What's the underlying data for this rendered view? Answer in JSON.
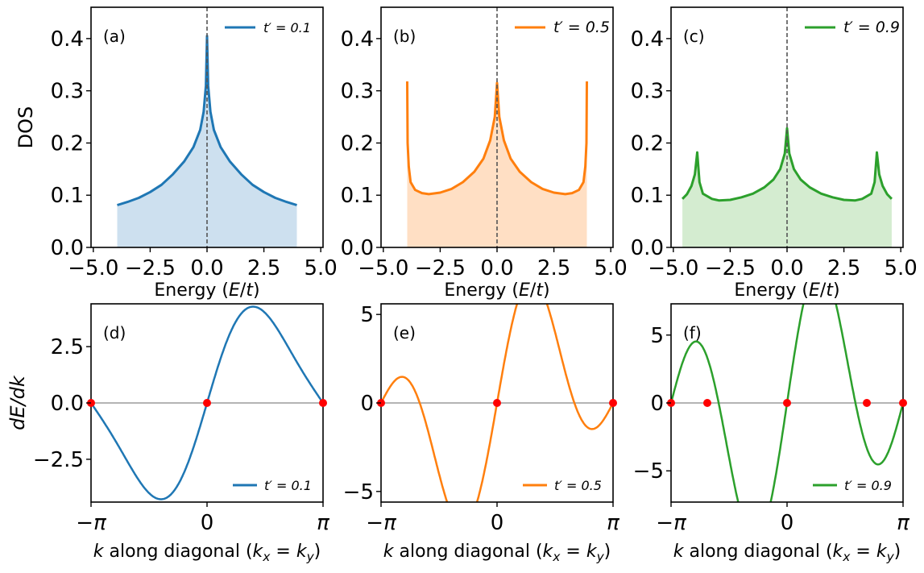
{
  "chart_data": [
    {
      "panel": "(a)",
      "type": "area",
      "series_name": "t′ = 0.1",
      "color": "#1f77b4",
      "fill": "#cde0ef",
      "xlabel": "Energy (E/t)",
      "ylabel": "DOS",
      "xlim": [
        -5.1,
        5.1
      ],
      "ylim": [
        0,
        0.46
      ],
      "xticks": [
        -5,
        -2.5,
        0,
        2.5,
        5
      ],
      "xtick_labels": [
        "−5.0",
        "−2.5",
        "0.0",
        "2.5",
        "5.0"
      ],
      "yticks": [
        0,
        0.1,
        0.2,
        0.3,
        0.4
      ],
      "ytick_labels": [
        "0.0",
        "0.1",
        "0.2",
        "0.3",
        "0.4"
      ],
      "vline_x": 0,
      "legend_loc": "top-right",
      "x": [
        -3.95,
        -3.5,
        -3.0,
        -2.5,
        -2.0,
        -1.5,
        -1.0,
        -0.6,
        -0.3,
        -0.15,
        -0.05,
        0,
        0.05,
        0.15,
        0.3,
        0.6,
        1.0,
        1.5,
        2.0,
        2.5,
        3.0,
        3.5,
        3.95
      ],
      "y": [
        0.081,
        0.087,
        0.095,
        0.106,
        0.12,
        0.14,
        0.165,
        0.192,
        0.225,
        0.26,
        0.31,
        0.405,
        0.31,
        0.26,
        0.225,
        0.192,
        0.165,
        0.14,
        0.12,
        0.106,
        0.095,
        0.087,
        0.081
      ]
    },
    {
      "panel": "(b)",
      "type": "area",
      "series_name": "t′ = 0.5",
      "color": "#ff7f0e",
      "fill": "#ffdfc4",
      "xlabel": "Energy (E/t)",
      "ylabel": "",
      "xlim": [
        -5.1,
        5.1
      ],
      "ylim": [
        0,
        0.46
      ],
      "xticks": [
        -5,
        -2.5,
        0,
        2.5,
        5
      ],
      "xtick_labels": [
        "−5.0",
        "−2.5",
        "0.0",
        "2.5",
        "5.0"
      ],
      "yticks": [
        0,
        0.1,
        0.2,
        0.3,
        0.4
      ],
      "ytick_labels": [
        "0.0",
        "0.1",
        "0.2",
        "0.3",
        "0.4"
      ],
      "vline_x": 0,
      "legend_loc": "top-right",
      "x": [
        -3.95,
        -3.93,
        -3.88,
        -3.8,
        -3.6,
        -3.3,
        -3.0,
        -2.5,
        -2.0,
        -1.5,
        -1.0,
        -0.6,
        -0.3,
        -0.1,
        0,
        0.1,
        0.3,
        0.6,
        1.0,
        1.5,
        2.0,
        2.5,
        3.0,
        3.3,
        3.6,
        3.8,
        3.88,
        3.93,
        3.95
      ],
      "y": [
        0.318,
        0.2,
        0.155,
        0.125,
        0.11,
        0.104,
        0.102,
        0.105,
        0.112,
        0.125,
        0.145,
        0.17,
        0.205,
        0.25,
        0.315,
        0.25,
        0.205,
        0.17,
        0.145,
        0.125,
        0.112,
        0.105,
        0.102,
        0.104,
        0.11,
        0.125,
        0.155,
        0.2,
        0.318
      ]
    },
    {
      "panel": "(c)",
      "type": "area",
      "series_name": "t′ = 0.9",
      "color": "#2ca02c",
      "fill": "#d4ecd0",
      "xlabel": "Energy (E/t)",
      "ylabel": "",
      "xlim": [
        -5.1,
        5.1
      ],
      "ylim": [
        0,
        0.46
      ],
      "xticks": [
        -5,
        -2.5,
        0,
        2.5,
        5
      ],
      "xtick_labels": [
        "−5.0",
        "−2.5",
        "0.0",
        "2.5",
        "5.0"
      ],
      "yticks": [
        0,
        0.1,
        0.2,
        0.3,
        0.4
      ],
      "ytick_labels": [
        "0.0",
        "0.1",
        "0.2",
        "0.3",
        "0.4"
      ],
      "vline_x": 0,
      "legend_loc": "top-right",
      "x": [
        -4.6,
        -4.4,
        -4.2,
        -4.05,
        -3.95,
        -3.85,
        -3.7,
        -3.3,
        -3.0,
        -2.5,
        -2.0,
        -1.5,
        -1.0,
        -0.6,
        -0.3,
        -0.1,
        0,
        0.1,
        0.3,
        0.6,
        1.0,
        1.5,
        2.0,
        2.5,
        3.0,
        3.3,
        3.7,
        3.85,
        3.95,
        4.05,
        4.2,
        4.4,
        4.6
      ],
      "y": [
        0.093,
        0.102,
        0.118,
        0.14,
        0.182,
        0.125,
        0.103,
        0.093,
        0.09,
        0.091,
        0.096,
        0.103,
        0.115,
        0.13,
        0.15,
        0.18,
        0.228,
        0.18,
        0.15,
        0.13,
        0.115,
        0.103,
        0.096,
        0.091,
        0.09,
        0.093,
        0.103,
        0.125,
        0.182,
        0.14,
        0.118,
        0.102,
        0.093
      ]
    },
    {
      "panel": "(d)",
      "type": "line",
      "series_name": "t′ = 0.1",
      "color": "#1f77b4",
      "xlabel": "k along diagonal (kx = ky)",
      "ylabel": "dE/dk",
      "xlim": [
        -3.14159,
        3.14159
      ],
      "ylim": [
        -4.4,
        4.4
      ],
      "xticks": [
        -3.14159,
        0,
        3.14159
      ],
      "xtick_labels": [
        "−π",
        "0",
        "π"
      ],
      "yticks": [
        -2.5,
        0,
        2.5
      ],
      "ytick_labels": [
        "−2.5",
        "0.0",
        "2.5"
      ],
      "t_prime": 0.1,
      "zero_crossings": [
        -3.14159,
        0,
        3.14159
      ],
      "legend_loc": "bottom-right"
    },
    {
      "panel": "(e)",
      "type": "line",
      "series_name": "t′ = 0.5",
      "color": "#ff7f0e",
      "xlabel": "k along diagonal (kx = ky)",
      "ylabel": "",
      "xlim": [
        -3.14159,
        3.14159
      ],
      "ylim": [
        -5.6,
        5.6
      ],
      "xticks": [
        -3.14159,
        0,
        3.14159
      ],
      "xtick_labels": [
        "−π",
        "0",
        "π"
      ],
      "yticks": [
        -5,
        0,
        5
      ],
      "ytick_labels": [
        "−5",
        "0",
        "5"
      ],
      "t_prime": 0.5,
      "zero_crossings": [
        -3.14159,
        0,
        3.14159
      ],
      "legend_loc": "bottom-right"
    },
    {
      "panel": "(f)",
      "type": "line",
      "series_name": "t′ = 0.9",
      "color": "#2ca02c",
      "xlabel": "k along diagonal (kx = ky)",
      "ylabel": "",
      "xlim": [
        -3.14159,
        3.14159
      ],
      "ylim": [
        -7.3,
        7.3
      ],
      "xticks": [
        -3.14159,
        0,
        3.14159
      ],
      "xtick_labels": [
        "−π",
        "0",
        "π"
      ],
      "yticks": [
        -5,
        0,
        5
      ],
      "ytick_labels": [
        "−5",
        "0",
        "5"
      ],
      "t_prime": 0.9,
      "zero_crossings": [
        -3.14159,
        -2.16,
        0,
        2.16,
        3.14159
      ],
      "legend_loc": "bottom-right"
    }
  ]
}
